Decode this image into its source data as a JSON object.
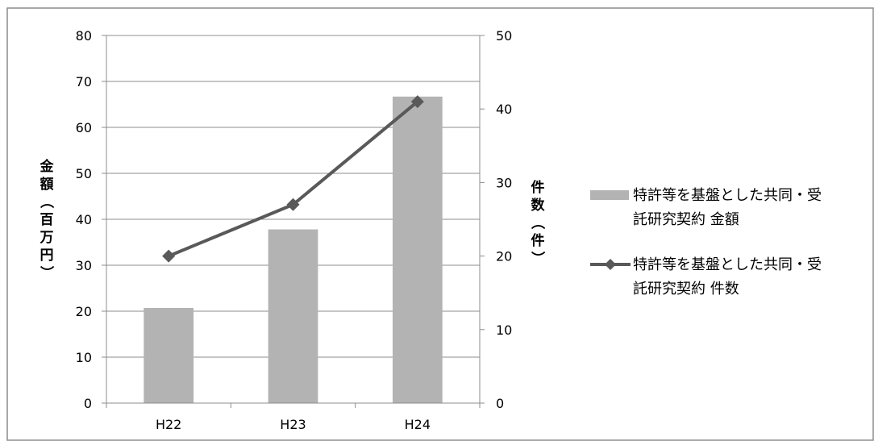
{
  "chart_data": {
    "type": "bar",
    "categories": [
      "H22",
      "H23",
      "H24"
    ],
    "y_left": {
      "label": "金額（百万円）",
      "min": 0,
      "max": 80,
      "step": 10,
      "ticks": [
        "0",
        "10",
        "20",
        "30",
        "40",
        "50",
        "60",
        "70",
        "80"
      ]
    },
    "y_right": {
      "label": "件数（件）",
      "min": 0,
      "max": 50,
      "step": 10,
      "ticks": [
        "0",
        "10",
        "20",
        "30",
        "40",
        "50"
      ]
    },
    "series": [
      {
        "name": "特許等を基盤とした共同・受託研究契約 金額",
        "name_lines": [
          "特許等を基盤とした共同・受",
          "託研究契約 金額"
        ],
        "type": "bar",
        "axis": "left",
        "values": [
          20.7,
          37.8,
          66.7
        ],
        "color": "#b3b3b3"
      },
      {
        "name": "特許等を基盤とした共同・受託研究契約 件数",
        "name_lines": [
          "特許等を基盤とした共同・受",
          "託研究契約 件数"
        ],
        "type": "line",
        "axis": "right",
        "marker": "diamond",
        "values": [
          20,
          27,
          41
        ],
        "color": "#595959"
      }
    ],
    "grid": true,
    "legend_position": "right"
  }
}
